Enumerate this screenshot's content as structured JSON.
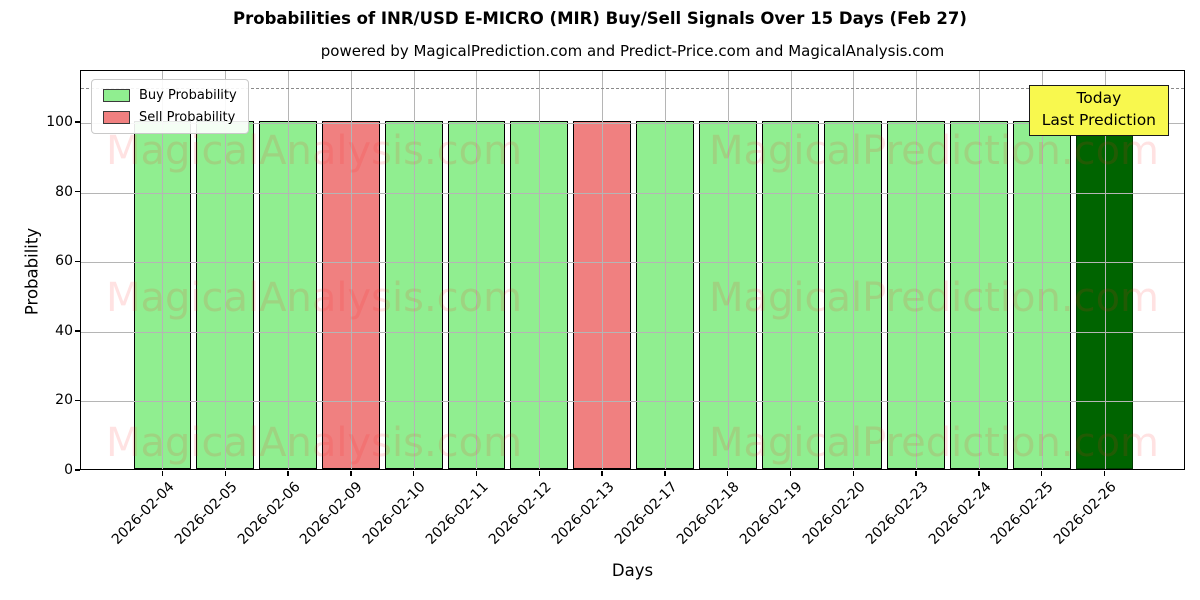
{
  "title": "Probabilities of INR/USD E-MICRO (MIR) Buy/Sell Signals Over 15 Days (Feb 27)",
  "subtitle": "powered by MagicalPrediction.com and Predict-Price.com and MagicalAnalysis.com",
  "annotation": {
    "line1": "Today",
    "line2": "Last Prediction",
    "bg_color": "#f8f84e"
  },
  "legend": {
    "items": [
      {
        "label": "Buy Probability",
        "color": "#90EE90"
      },
      {
        "label": "Sell Probability",
        "color": "#F08080"
      }
    ],
    "position": "upper left"
  },
  "watermarks": [
    "MagicalAnalysis.com",
    "MagicalPrediction.com"
  ],
  "colors": {
    "buy": "#90EE90",
    "sell": "#F08080",
    "today": "#006400",
    "grid": "#b5b5b5",
    "watermark": "rgba(255,30,30,0.13)"
  },
  "chart_data": {
    "type": "bar",
    "title": "Probabilities of INR/USD E-MICRO (MIR) Buy/Sell Signals Over 15 Days (Feb 27)",
    "xlabel": "Days",
    "ylabel": "Probability",
    "ylim": [
      0,
      115
    ],
    "yticks": [
      0,
      20,
      40,
      60,
      80,
      100
    ],
    "grid": true,
    "dashed_line_y": 110,
    "legend_position": "upper left",
    "categories": [
      "2026-02-04",
      "2026-02-05",
      "2026-02-06",
      "2026-02-09",
      "2026-02-10",
      "2026-02-11",
      "2026-02-12",
      "2026-02-13",
      "2026-02-17",
      "2026-02-18",
      "2026-02-19",
      "2026-02-20",
      "2026-02-23",
      "2026-02-24",
      "2026-02-25",
      "2026-02-26"
    ],
    "values": [
      100,
      100,
      100,
      100,
      100,
      100,
      100,
      100,
      100,
      100,
      100,
      100,
      100,
      100,
      100,
      100
    ],
    "signal_per_day": [
      "buy",
      "buy",
      "buy",
      "sell",
      "buy",
      "buy",
      "buy",
      "sell",
      "buy",
      "buy",
      "buy",
      "buy",
      "buy",
      "buy",
      "buy",
      "today"
    ],
    "colors_per_day": [
      "#90EE90",
      "#90EE90",
      "#90EE90",
      "#F08080",
      "#90EE90",
      "#90EE90",
      "#90EE90",
      "#F08080",
      "#90EE90",
      "#90EE90",
      "#90EE90",
      "#90EE90",
      "#90EE90",
      "#90EE90",
      "#90EE90",
      "#006400"
    ]
  }
}
